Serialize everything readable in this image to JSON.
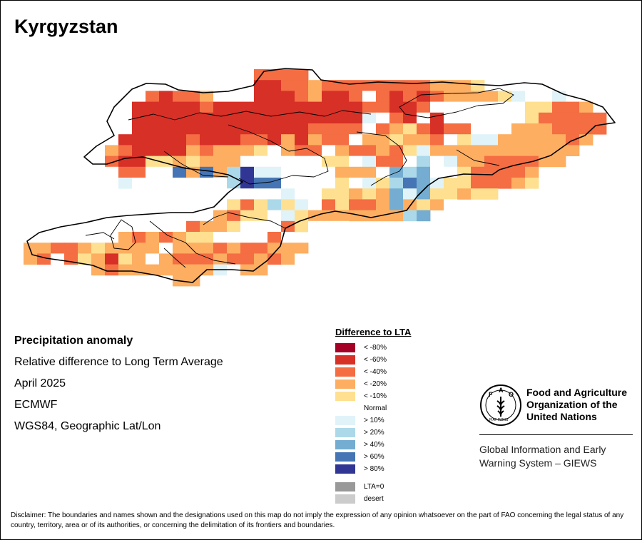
{
  "map": {
    "country": "Kyrgyzstan"
  },
  "info": {
    "title": "Precipitation anomaly",
    "subtitle": "Relative difference to Long Term Average",
    "date": "April 2025",
    "source": "ECMWF",
    "projection": "WGS84, Geographic Lat/Lon"
  },
  "legend": {
    "title": "Difference to LTA",
    "items": [
      {
        "label": "< -80%",
        "color": "#a50026"
      },
      {
        "label": "< -60%",
        "color": "#d73027"
      },
      {
        "label": "< -40%",
        "color": "#f46d43"
      },
      {
        "label": "< -20%",
        "color": "#fdae61"
      },
      {
        "label": "< -10%",
        "color": "#fee090"
      },
      {
        "label": "Normal",
        "color": "#ffffff"
      },
      {
        "label": "> 10%",
        "color": "#e0f3f8"
      },
      {
        "label": "> 20%",
        "color": "#abd9e9"
      },
      {
        "label": "> 40%",
        "color": "#74add1"
      },
      {
        "label": "> 60%",
        "color": "#4575b4"
      },
      {
        "label": "> 80%",
        "color": "#313695"
      }
    ],
    "extra": [
      {
        "label": "LTA=0",
        "color": "#999999"
      },
      {
        "label": "desert",
        "color": "#cccccc"
      }
    ]
  },
  "fao": {
    "org_line1": "Food and Agriculture",
    "org_line2": "Organization of the",
    "org_line3": "United Nations",
    "giews_line1": "Global Information and Early",
    "giews_line2": "Warning System – GIEWS",
    "logo_letters": "FAO",
    "motto": "FIAT PANIS"
  },
  "disclaimer": "Disclaimer: The boundaries and names shown and the designations used on this map do not imply the expression of any opinion whatsoever on the part of FAO concerning the legal status of any country, territory, area or of its authorities, or concerning the delimitation of its frontiers and boundaries.",
  "grid": {
    "note": "class index per cell (rows north to south, cols west to east): 0=< -80%,1=< -60%,2=< -40%,3=< -20%,4=< -10%,5=Normal,6=> 10%,7=> 20%,8=> 40%,9=> 60%,10=> 80%, -1=outside",
    "rows": [
      "-1,-1,-1,-1,-1,-1,-1,-1,-1,-1,-1,-1,-1,-1,-1,-1,-1,-1,2,2,2,2,-1,-1,-1,-1,-1,-1,-1,-1,-1,-1,-1,-1,-1,-1,-1,-1,-1,-1,-1,-1,-1,-1,-1",
      "-1,-1,-1,-1,-1,-1,-1,-1,-1,-1,-1,-1,-1,-1,-1,-1,-1,-1,1,1,2,2,3,2,2,2,2,2,2,2,2,3,3,3,4,-1,-1,-1,-1,-1,-1,-1,-1,-1,-1",
      "-1,-1,-1,-1,-1,-1,-1,-1,-1,-1,2,1,2,2,3,5,5,5,1,1,1,2,3,1,1,2,5,2,1,2,1,2,3,3,3,3,4,6,5,5,6,-1,-1,-1,-1",
      "-1,-1,-1,-1,-1,-1,-1,-1,-1,1,1,1,1,1,2,1,1,1,1,1,1,1,1,1,1,1,2,2,1,1,2,5,5,5,5,5,5,5,4,4,2,2,3,-1,-1",
      "-1,-1,-1,-1,-1,-1,-1,-1,-1,1,1,1,1,1,1,1,1,1,1,1,1,1,1,1,1,1,6,5,2,1,5,1,5,5,5,5,5,5,4,2,2,2,2,2,-1",
      "-1,-1,-1,-1,-1,-1,-1,-1,-1,1,1,1,1,1,1,1,1,1,1,1,1,1,2,2,2,2,5,2,3,4,2,1,2,2,5,5,5,3,3,3,2,2,2,2,-1",
      "-1,-1,-1,-1,-1,-1,-1,-1,1,1,1,1,1,2,1,1,1,2,2,1,3,1,3,2,2,5,3,3,4,3,3,2,5,4,6,6,3,3,3,3,3,2,3,-1,-1",
      "-1,-1,-1,-1,-1,-1,-1,3,2,1,1,1,1,3,2,3,3,3,4,5,3,2,2,5,3,2,2,3,2,4,6,3,3,3,3,3,3,3,3,3,3,3,-1,-1,-1",
      "-1,-1,-1,-1,-1,-1,-1,2,1,1,4,4,3,4,3,3,3,5,5,5,5,5,5,4,4,5,6,2,2,5,7,5,6,3,3,2,2,2,2,3,3,-1,-1,-1,-1",
      "-1,-1,-1,-1,-1,-1,-1,5,2,2,5,5,9,3,9,3,7,10,6,6,5,5,5,5,3,3,3,5,8,7,8,5,5,4,2,2,2,2,3,-1,-1,-1,-1,-1,-1",
      "-1,-1,-1,-1,-1,-1,-1,-1,6,5,5,5,5,5,5,5,7,10,9,9,5,5,5,5,4,5,6,4,7,9,8,6,4,4,2,2,2,3,4,-1,-1,-1,-1,-1,-1",
      "-1,-1,-1,-1,-1,-1,-1,-1,-1,-1,-1,-1,-1,-1,5,5,5,5,5,5,6,5,5,4,4,3,4,3,8,6,8,4,4,3,4,4,-1,-1,-1,-1,-1,-1,-1,-1,-1",
      "-1,-1,-1,-1,-1,-1,-1,-1,-1,-1,-1,-1,-1,-1,-1,-1,4,2,4,7,4,6,5,2,4,2,2,3,8,3,4,3,5,-1,-1,-1,-1,-1,-1,-1,-1,-1,-1,-1,-1",
      "-1,-1,-1,-1,-1,-1,-1,-1,-1,-1,-1,-1,-1,-1,-1,3,2,4,4,5,6,4,3,3,3,3,3,3,3,7,8,-1,-1,-1,-1,-1,-1,-1,-1,-1,-1,-1,-1,-1,-1",
      "-1,-1,-1,-1,-1,-1,-1,-1,-1,-1,-1,-1,-1,2,3,3,4,5,5,5,2,4,5,5,5,-1,-1,-1,-1,-1,-1,-1,-1,-1,-1,-1,-1,-1,-1,-1,-1,-1,-1,-1,-1",
      "-1,-1,-1,-1,-1,-1,-1,-1,3,2,3,2,3,4,4,5,5,5,5,2,5,-1,-1,-1,-1,-1,-1,-1,-1,-1,-1,-1,-1,-1,-1,-1,-1,-1,-1,-1,-1,-1,-1,-1,-1",
      "-1,3,3,2,2,3,4,3,3,3,3,5,3,3,3,2,3,2,2,3,3,3,-1,-1,-1,-1,-1,-1,-1,-1,-1,-1,-1,-1,-1,-1,-1,-1,-1,-1,-1,-1,-1,-1,-1",
      "-1,3,2,5,2,4,3,1,4,3,5,3,2,2,2,3,2,2,3,2,3,5,-1,-1,-1,-1,-1,-1,-1,-1,-1,-1,-1,-1,-1,-1,-1,-1,-1,-1,-1,-1,-1,-1,-1",
      "-1,-1,-1,-1,-1,-1,3,2,3,3,3,3,3,3,3,6,5,3,3,-1,-1,-1,-1,-1,-1,-1,-1,-1,-1,-1,-1,-1,-1,-1,-1,-1,-1,-1,-1,-1,-1,-1,-1,-1,-1",
      "-1,-1,-1,-1,-1,-1,-1,-1,-1,-1,-1,-1,3,3,-1,-1,-1,-1,-1,-1,-1,-1,-1,-1,-1,-1,-1,-1,-1,-1,-1,-1,-1,-1,-1,-1,-1,-1,-1,-1,-1,-1,-1,-1,-1"
    ]
  }
}
